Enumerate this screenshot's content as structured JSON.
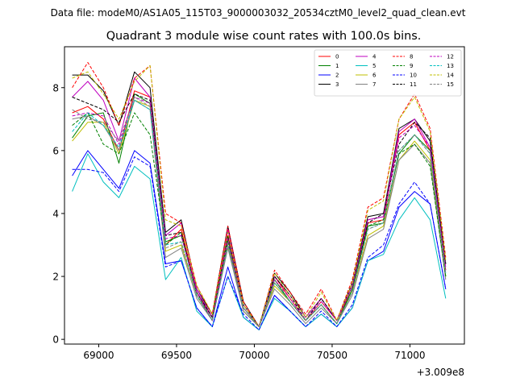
{
  "header": {
    "data_file": "Data file: modeM0/AS1A05_115T03_9000003032_20534cztM0_level2_quad_clean.evt"
  },
  "chart_data": {
    "type": "line",
    "title": "Quadrant 3 module wise count rates with 100.0s bins.",
    "xlabel": "",
    "ylabel": "",
    "x_offset_label": "+3.009e8",
    "xlim": [
      68780,
      71350
    ],
    "ylim": [
      -0.15,
      9.3
    ],
    "xticks": [
      69000,
      69500,
      70000,
      70500,
      71000
    ],
    "yticks": [
      0,
      2,
      4,
      6,
      8
    ],
    "grid": false,
    "legend_position": "top-right",
    "x": [
      68830,
      68930,
      69030,
      69130,
      69230,
      69330,
      69430,
      69530,
      69630,
      69730,
      69830,
      69930,
      70030,
      70130,
      70230,
      70330,
      70430,
      70530,
      70630,
      70730,
      70830,
      70930,
      71030,
      71130,
      71230
    ],
    "series": [
      {
        "name": "0",
        "color": "#ff0000",
        "dash": "solid",
        "values": [
          7.2,
          7.4,
          7.0,
          6.0,
          7.9,
          7.7,
          3.0,
          3.5,
          1.5,
          0.7,
          3.3,
          1.0,
          0.4,
          2.0,
          1.3,
          0.6,
          1.2,
          0.6,
          1.6,
          3.7,
          3.8,
          6.5,
          6.9,
          6.0,
          2.2
        ]
      },
      {
        "name": "1",
        "color": "#008000",
        "dash": "solid",
        "values": [
          6.4,
          7.1,
          7.2,
          5.6,
          7.8,
          7.5,
          3.1,
          3.3,
          1.5,
          0.6,
          3.2,
          0.9,
          0.4,
          1.9,
          1.2,
          0.6,
          1.1,
          0.5,
          1.6,
          3.6,
          3.7,
          5.9,
          6.5,
          6.0,
          2.0
        ]
      },
      {
        "name": "2",
        "color": "#0000ff",
        "dash": "solid",
        "values": [
          5.2,
          6.0,
          5.4,
          4.8,
          6.0,
          5.6,
          2.4,
          2.5,
          1.0,
          0.4,
          2.3,
          0.7,
          0.3,
          1.4,
          0.9,
          0.4,
          0.8,
          0.4,
          1.0,
          2.5,
          2.8,
          4.2,
          4.7,
          4.3,
          1.6
        ]
      },
      {
        "name": "3",
        "color": "#000000",
        "dash": "solid",
        "values": [
          8.4,
          8.4,
          7.9,
          6.8,
          8.5,
          8.0,
          3.4,
          3.8,
          1.6,
          0.8,
          3.6,
          1.2,
          0.4,
          2.1,
          1.5,
          0.7,
          1.3,
          0.6,
          1.8,
          3.9,
          4.0,
          6.7,
          7.0,
          6.3,
          2.4
        ]
      },
      {
        "name": "4",
        "color": "#bf00bf",
        "dash": "solid",
        "values": [
          7.7,
          8.2,
          7.6,
          6.3,
          8.3,
          7.7,
          3.3,
          3.7,
          1.6,
          0.7,
          3.5,
          1.1,
          0.4,
          2.0,
          1.4,
          0.7,
          1.3,
          0.6,
          1.7,
          3.8,
          3.9,
          6.6,
          7.0,
          6.1,
          2.3
        ]
      },
      {
        "name": "5",
        "color": "#00bfbf",
        "dash": "solid",
        "values": [
          4.7,
          5.9,
          5.0,
          4.5,
          5.5,
          5.1,
          1.9,
          2.6,
          0.9,
          0.4,
          2.0,
          0.7,
          0.3,
          1.3,
          0.9,
          0.4,
          0.8,
          0.4,
          1.0,
          2.5,
          2.7,
          3.8,
          4.5,
          3.8,
          1.3
        ]
      },
      {
        "name": "6",
        "color": "#bfbf00",
        "dash": "solid",
        "values": [
          6.3,
          6.9,
          6.9,
          5.9,
          7.6,
          7.4,
          2.8,
          3.0,
          1.4,
          0.6,
          3.0,
          0.9,
          0.4,
          1.7,
          1.2,
          0.6,
          1.1,
          0.5,
          1.5,
          3.3,
          3.6,
          5.7,
          6.3,
          5.7,
          2.0
        ]
      },
      {
        "name": "7",
        "color": "#808080",
        "dash": "solid",
        "values": [
          7.0,
          7.1,
          6.8,
          6.0,
          7.6,
          7.3,
          2.6,
          2.9,
          1.3,
          0.6,
          2.9,
          0.9,
          0.4,
          1.6,
          1.1,
          0.5,
          1.0,
          0.5,
          1.4,
          3.2,
          3.5,
          5.7,
          6.2,
          5.6,
          1.9
        ]
      },
      {
        "name": "8",
        "color": "#ff0000",
        "dash": "dashed",
        "values": [
          8.0,
          8.8,
          8.0,
          6.8,
          8.3,
          8.7,
          4.0,
          3.7,
          1.7,
          0.8,
          3.6,
          1.2,
          0.4,
          2.2,
          1.5,
          0.8,
          1.6,
          0.6,
          1.9,
          4.2,
          4.5,
          7.0,
          7.8,
          6.7,
          2.6
        ]
      },
      {
        "name": "9",
        "color": "#008000",
        "dash": "dashed",
        "values": [
          6.8,
          7.2,
          6.2,
          5.9,
          7.2,
          6.5,
          3.0,
          3.4,
          1.4,
          0.6,
          3.1,
          1.0,
          0.4,
          1.8,
          1.2,
          0.6,
          1.1,
          0.5,
          1.6,
          3.6,
          3.8,
          5.9,
          6.2,
          5.5,
          2.0
        ]
      },
      {
        "name": "10",
        "color": "#0000ff",
        "dash": "dashed",
        "values": [
          5.4,
          5.4,
          5.3,
          4.7,
          5.8,
          5.5,
          2.3,
          2.5,
          1.0,
          0.4,
          2.0,
          0.8,
          0.3,
          1.4,
          0.9,
          0.4,
          0.9,
          0.4,
          1.1,
          2.6,
          3.0,
          4.3,
          5.0,
          4.3,
          1.6
        ]
      },
      {
        "name": "11",
        "color": "#000000",
        "dash": "dashed",
        "values": [
          7.7,
          7.5,
          7.3,
          6.9,
          7.8,
          7.6,
          3.3,
          3.4,
          1.5,
          0.7,
          3.3,
          1.1,
          0.4,
          2.0,
          1.4,
          0.6,
          1.3,
          0.6,
          1.7,
          3.7,
          4.0,
          6.2,
          6.9,
          6.4,
          2.4
        ]
      },
      {
        "name": "12",
        "color": "#bf00bf",
        "dash": "dashed",
        "values": [
          7.1,
          7.2,
          7.1,
          6.2,
          7.7,
          7.5,
          3.2,
          3.3,
          1.5,
          0.6,
          3.2,
          1.0,
          0.4,
          1.9,
          1.3,
          0.6,
          1.2,
          0.6,
          1.7,
          3.8,
          3.9,
          6.4,
          6.8,
          6.1,
          2.2
        ]
      },
      {
        "name": "13",
        "color": "#00bfbf",
        "dash": "dashed",
        "values": [
          6.6,
          7.2,
          6.8,
          6.1,
          7.6,
          7.3,
          3.0,
          3.1,
          1.4,
          0.6,
          3.0,
          1.0,
          0.4,
          1.8,
          1.2,
          0.6,
          1.1,
          0.5,
          1.5,
          3.5,
          3.7,
          6.0,
          6.5,
          5.9,
          2.1
        ]
      },
      {
        "name": "14",
        "color": "#bfbf00",
        "dash": "dashed",
        "values": [
          8.3,
          8.5,
          7.8,
          7.0,
          8.2,
          8.7,
          3.8,
          3.6,
          1.7,
          0.8,
          3.4,
          1.1,
          0.4,
          2.1,
          1.4,
          0.7,
          1.5,
          0.6,
          1.8,
          4.1,
          4.4,
          7.0,
          7.7,
          6.6,
          2.5
        ]
      },
      {
        "name": "15",
        "color": "#808080",
        "dash": "dashed",
        "values": [
          7.3,
          7.0,
          6.9,
          6.3,
          7.7,
          7.4,
          2.9,
          3.1,
          1.4,
          0.6,
          3.0,
          1.0,
          0.4,
          1.8,
          1.2,
          0.6,
          1.1,
          0.5,
          1.5,
          3.5,
          3.7,
          6.0,
          6.5,
          5.9,
          2.1
        ]
      }
    ]
  }
}
